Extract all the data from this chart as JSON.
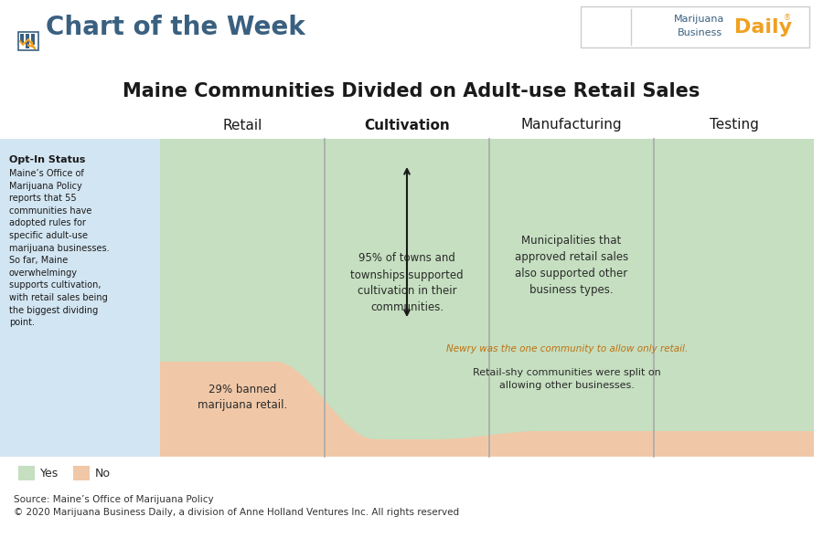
{
  "title": "Maine Communities Divided on Adult-use Retail Sales",
  "header": "Chart of the Week",
  "columns": [
    "Retail",
    "Cultivation",
    "Manufacturing",
    "Testing"
  ],
  "bg_color": "#ffffff",
  "green_color": "#c5dfc0",
  "peach_color": "#f0c8a8",
  "sidebar_color": "#c8dff0",
  "col_sep_color": "#aaaaaa",
  "opt_in_title": "Opt-In Status",
  "opt_in_text": "Maine’s Office of\nMarijuana Policy\nreports that 55\ncommunities have\nadopted rules for\nspecific adult-use\nmarijuana businesses.\nSo far, Maine\noverwhelmingy\nsupports cultivation,\nwith retail sales being\nthe biggest dividing\npoint.",
  "annotation_cultivation": "95% of towns and\ntownships supported\ncultivation in their\ncommunities.",
  "annotation_manufacturing": "Municipalities that\napproved retail sales\nalso supported other\nbusiness types.",
  "annotation_newry": "Newry was the one community to allow only retail.",
  "annotation_retail_shy": "Retail-shy communities were split on\nallowing other businesses.",
  "label_29": "29% banned\nmarijuana retail.",
  "source_line1": "Source: Maine’s Office of Marijuana Policy",
  "source_line2": "© 2020 Marijuana Business Daily, a division of Anne Holland Ventures Inc. All rights reserved",
  "yes_label": "Yes",
  "no_label": "No",
  "header_color": "#3a6080",
  "title_color": "#1a1a1a",
  "orange_accent": "#f0a020",
  "newry_color": "#c07010",
  "arrow_color": "#1a1a1a",
  "logo_border": "#cccccc",
  "logo_blue": "#3a6080",
  "logo_orange": "#f0a020"
}
